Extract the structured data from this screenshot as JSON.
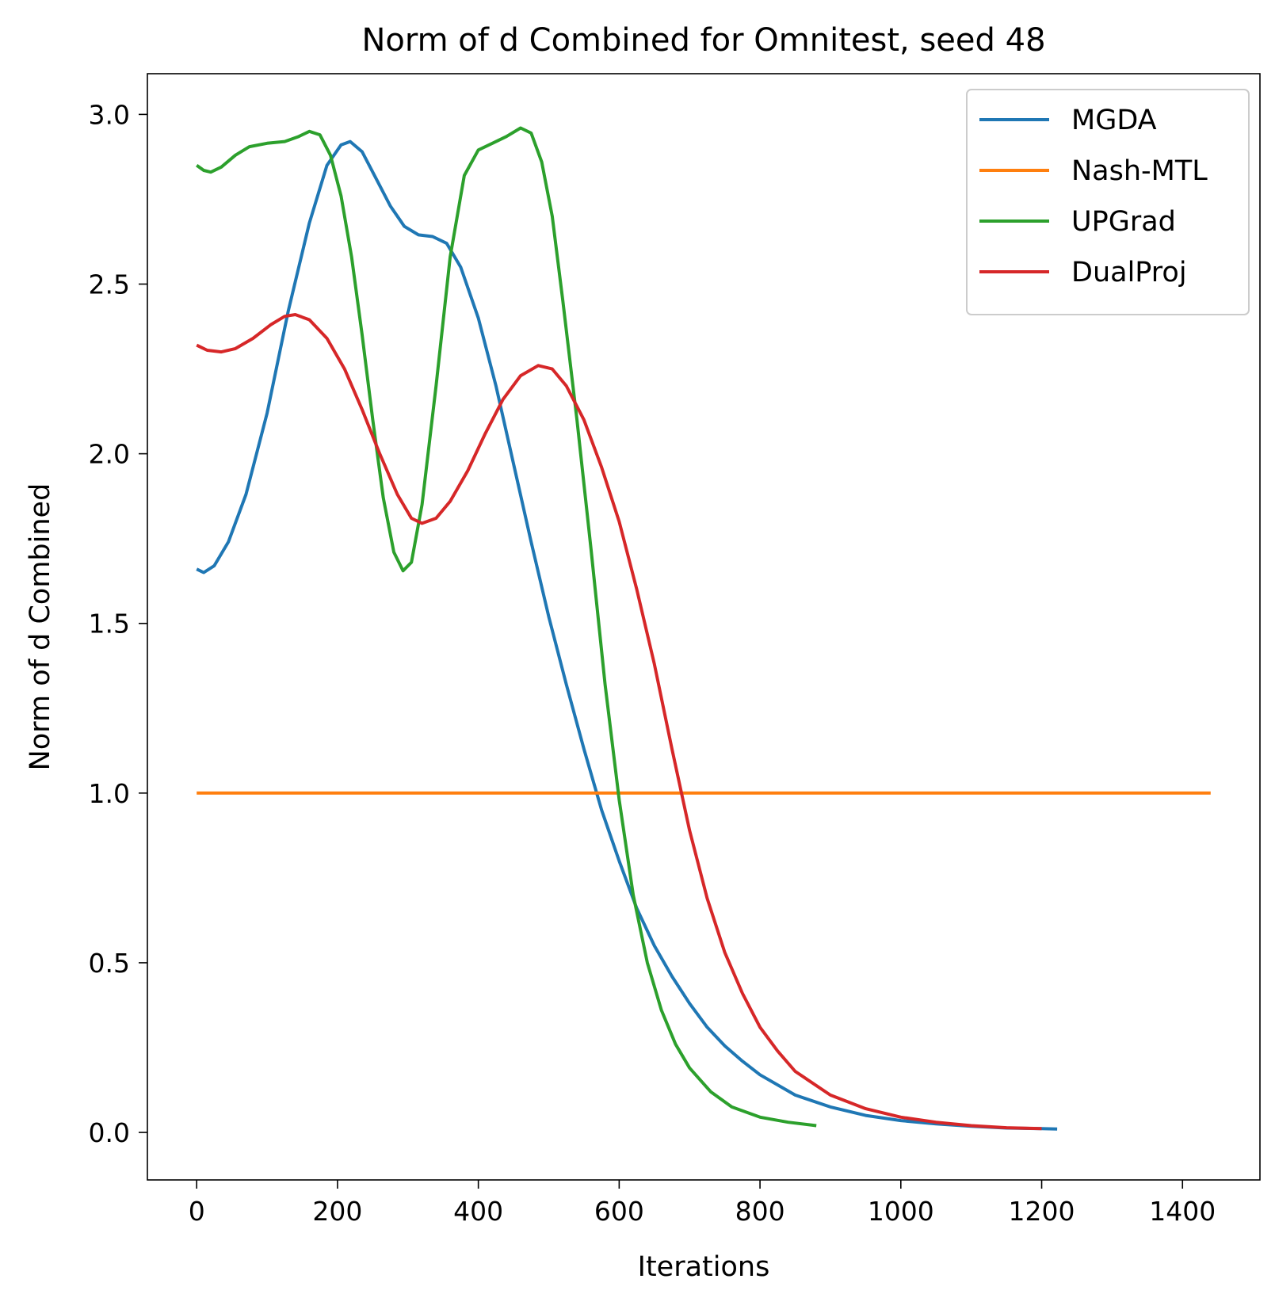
{
  "chart_data": {
    "type": "line",
    "title": "Norm of d Combined for Omnitest, seed 48",
    "xlabel": "Iterations",
    "ylabel": "Norm of d Combined",
    "xlim": [
      -70,
      1510
    ],
    "ylim": [
      -0.14,
      3.12
    ],
    "xticks": [
      0,
      200,
      400,
      600,
      800,
      1000,
      1200,
      1400
    ],
    "xtick_labels": [
      "0",
      "200",
      "400",
      "600",
      "800",
      "1000",
      "1200",
      "1400"
    ],
    "yticks": [
      0.0,
      0.5,
      1.0,
      1.5,
      2.0,
      2.5,
      3.0
    ],
    "ytick_labels": [
      "0.0",
      "0.5",
      "1.0",
      "1.5",
      "2.0",
      "2.5",
      "3.0"
    ],
    "grid": false,
    "legend_position": "top-right",
    "series": [
      {
        "name": "MGDA",
        "color": "#1f77b4",
        "points": [
          [
            0,
            1.66
          ],
          [
            10,
            1.65
          ],
          [
            25,
            1.67
          ],
          [
            45,
            1.74
          ],
          [
            70,
            1.88
          ],
          [
            100,
            2.12
          ],
          [
            130,
            2.42
          ],
          [
            160,
            2.68
          ],
          [
            185,
            2.85
          ],
          [
            205,
            2.91
          ],
          [
            218,
            2.92
          ],
          [
            235,
            2.89
          ],
          [
            255,
            2.81
          ],
          [
            275,
            2.73
          ],
          [
            295,
            2.67
          ],
          [
            315,
            2.645
          ],
          [
            335,
            2.64
          ],
          [
            355,
            2.62
          ],
          [
            375,
            2.55
          ],
          [
            400,
            2.4
          ],
          [
            425,
            2.2
          ],
          [
            450,
            1.97
          ],
          [
            475,
            1.74
          ],
          [
            500,
            1.52
          ],
          [
            525,
            1.32
          ],
          [
            550,
            1.13
          ],
          [
            575,
            0.95
          ],
          [
            600,
            0.8
          ],
          [
            625,
            0.66
          ],
          [
            650,
            0.55
          ],
          [
            675,
            0.46
          ],
          [
            700,
            0.38
          ],
          [
            725,
            0.31
          ],
          [
            750,
            0.255
          ],
          [
            775,
            0.21
          ],
          [
            800,
            0.17
          ],
          [
            850,
            0.11
          ],
          [
            900,
            0.075
          ],
          [
            950,
            0.05
          ],
          [
            1000,
            0.035
          ],
          [
            1050,
            0.025
          ],
          [
            1100,
            0.018
          ],
          [
            1150,
            0.013
          ],
          [
            1200,
            0.011
          ],
          [
            1222,
            0.01
          ]
        ]
      },
      {
        "name": "Nash-MTL",
        "color": "#ff7f0e",
        "points": [
          [
            0,
            1.0
          ],
          [
            1440,
            1.0
          ]
        ]
      },
      {
        "name": "UPGrad",
        "color": "#2ca02c",
        "points": [
          [
            0,
            2.85
          ],
          [
            10,
            2.835
          ],
          [
            20,
            2.83
          ],
          [
            35,
            2.845
          ],
          [
            55,
            2.88
          ],
          [
            75,
            2.905
          ],
          [
            100,
            2.915
          ],
          [
            125,
            2.92
          ],
          [
            145,
            2.935
          ],
          [
            160,
            2.95
          ],
          [
            175,
            2.94
          ],
          [
            190,
            2.88
          ],
          [
            205,
            2.76
          ],
          [
            220,
            2.58
          ],
          [
            235,
            2.35
          ],
          [
            250,
            2.1
          ],
          [
            265,
            1.87
          ],
          [
            280,
            1.71
          ],
          [
            293,
            1.655
          ],
          [
            305,
            1.68
          ],
          [
            320,
            1.85
          ],
          [
            340,
            2.2
          ],
          [
            360,
            2.58
          ],
          [
            380,
            2.82
          ],
          [
            400,
            2.895
          ],
          [
            420,
            2.915
          ],
          [
            440,
            2.935
          ],
          [
            460,
            2.96
          ],
          [
            475,
            2.945
          ],
          [
            490,
            2.86
          ],
          [
            505,
            2.7
          ],
          [
            520,
            2.45
          ],
          [
            540,
            2.1
          ],
          [
            560,
            1.72
          ],
          [
            580,
            1.32
          ],
          [
            600,
            0.98
          ],
          [
            620,
            0.7
          ],
          [
            640,
            0.5
          ],
          [
            660,
            0.36
          ],
          [
            680,
            0.26
          ],
          [
            700,
            0.19
          ],
          [
            730,
            0.12
          ],
          [
            760,
            0.075
          ],
          [
            800,
            0.045
          ],
          [
            840,
            0.03
          ],
          [
            880,
            0.02
          ]
        ]
      },
      {
        "name": "DualProj",
        "color": "#d62728",
        "points": [
          [
            0,
            2.32
          ],
          [
            15,
            2.305
          ],
          [
            35,
            2.3
          ],
          [
            55,
            2.31
          ],
          [
            80,
            2.34
          ],
          [
            105,
            2.38
          ],
          [
            125,
            2.405
          ],
          [
            140,
            2.41
          ],
          [
            160,
            2.395
          ],
          [
            185,
            2.34
          ],
          [
            210,
            2.25
          ],
          [
            235,
            2.13
          ],
          [
            260,
            2.0
          ],
          [
            285,
            1.88
          ],
          [
            305,
            1.81
          ],
          [
            320,
            1.795
          ],
          [
            340,
            1.81
          ],
          [
            360,
            1.86
          ],
          [
            385,
            1.95
          ],
          [
            410,
            2.06
          ],
          [
            435,
            2.16
          ],
          [
            460,
            2.23
          ],
          [
            485,
            2.26
          ],
          [
            505,
            2.25
          ],
          [
            525,
            2.2
          ],
          [
            550,
            2.1
          ],
          [
            575,
            1.96
          ],
          [
            600,
            1.8
          ],
          [
            625,
            1.6
          ],
          [
            650,
            1.38
          ],
          [
            675,
            1.13
          ],
          [
            700,
            0.89
          ],
          [
            725,
            0.69
          ],
          [
            750,
            0.53
          ],
          [
            775,
            0.41
          ],
          [
            800,
            0.31
          ],
          [
            825,
            0.24
          ],
          [
            850,
            0.18
          ],
          [
            900,
            0.11
          ],
          [
            950,
            0.07
          ],
          [
            1000,
            0.045
          ],
          [
            1050,
            0.03
          ],
          [
            1100,
            0.02
          ],
          [
            1150,
            0.014
          ],
          [
            1200,
            0.011
          ]
        ]
      }
    ]
  }
}
